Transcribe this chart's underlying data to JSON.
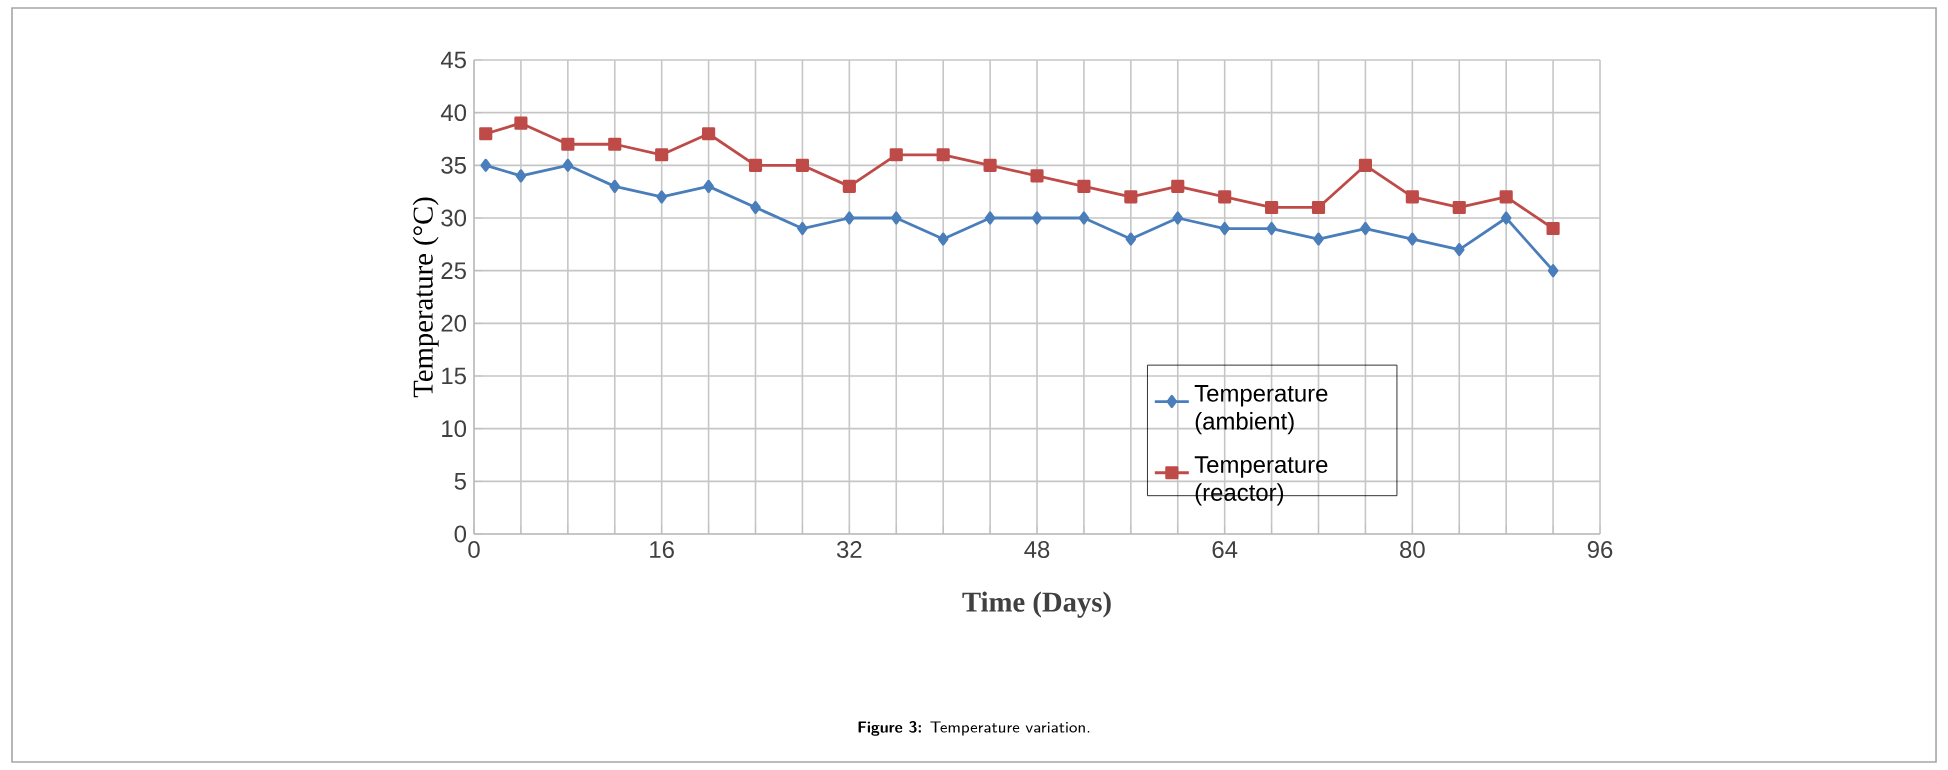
{
  "chart_data": {
    "type": "line",
    "xlabel": "Time (Days)",
    "ylabel": "Temperature (°C)",
    "annotations": [
      "**Figure 3:** Temperature variation."
    ],
    "x": [
      1,
      4,
      8,
      12,
      16,
      20,
      24,
      28,
      32,
      36,
      40,
      44,
      48,
      52,
      56,
      60,
      64,
      68,
      72,
      76,
      80,
      84,
      88,
      92
    ],
    "series": [
      {
        "name": "Temperature (ambient)",
        "color": "#4a7ebb",
        "marker": "diamond",
        "values": [
          35,
          34,
          35,
          33,
          32,
          33,
          31,
          29,
          30,
          30,
          28,
          30,
          30,
          30,
          28,
          30,
          29,
          29,
          28,
          29,
          28,
          27,
          30,
          25
        ]
      },
      {
        "name": "Temperature (reactor)",
        "color": "#be4b48",
        "marker": "square",
        "values": [
          38,
          39,
          37,
          37,
          36,
          38,
          35,
          35,
          33,
          36,
          36,
          35,
          34,
          33,
          32,
          33,
          32,
          31,
          31,
          35,
          32,
          31,
          32,
          29
        ]
      }
    ],
    "xlim": [
      0,
      96
    ],
    "ylim": [
      0,
      45
    ],
    "xticks": [
      0,
      {
        "value": 4,
        "label": null
      },
      {
        "value": 8,
        "label": null
      },
      {
        "value": 12,
        "label": null
      },
      16,
      {
        "value": 20,
        "label": null
      },
      {
        "value": 24,
        "label": null
      },
      {
        "value": 28,
        "label": null
      },
      32,
      {
        "value": 36,
        "label": null
      },
      {
        "value": 40,
        "label": null
      },
      {
        "value": 44,
        "label": null
      },
      48,
      {
        "value": 52,
        "label": null
      },
      {
        "value": 56,
        "label": null
      },
      {
        "value": 60,
        "label": null
      },
      64,
      {
        "value": 68,
        "label": null
      },
      {
        "value": 72,
        "label": null
      },
      {
        "value": 76,
        "label": null
      },
      80,
      {
        "value": 84,
        "label": null
      },
      {
        "value": 88,
        "label": null
      },
      {
        "value": 92,
        "label": null
      },
      96
    ],
    "yticks": [
      0,
      5,
      10,
      15,
      20,
      25,
      30,
      35,
      40,
      45
    ],
    "grid": true,
    "legend": "bottom right",
    "line_style": "solid"
  }
}
